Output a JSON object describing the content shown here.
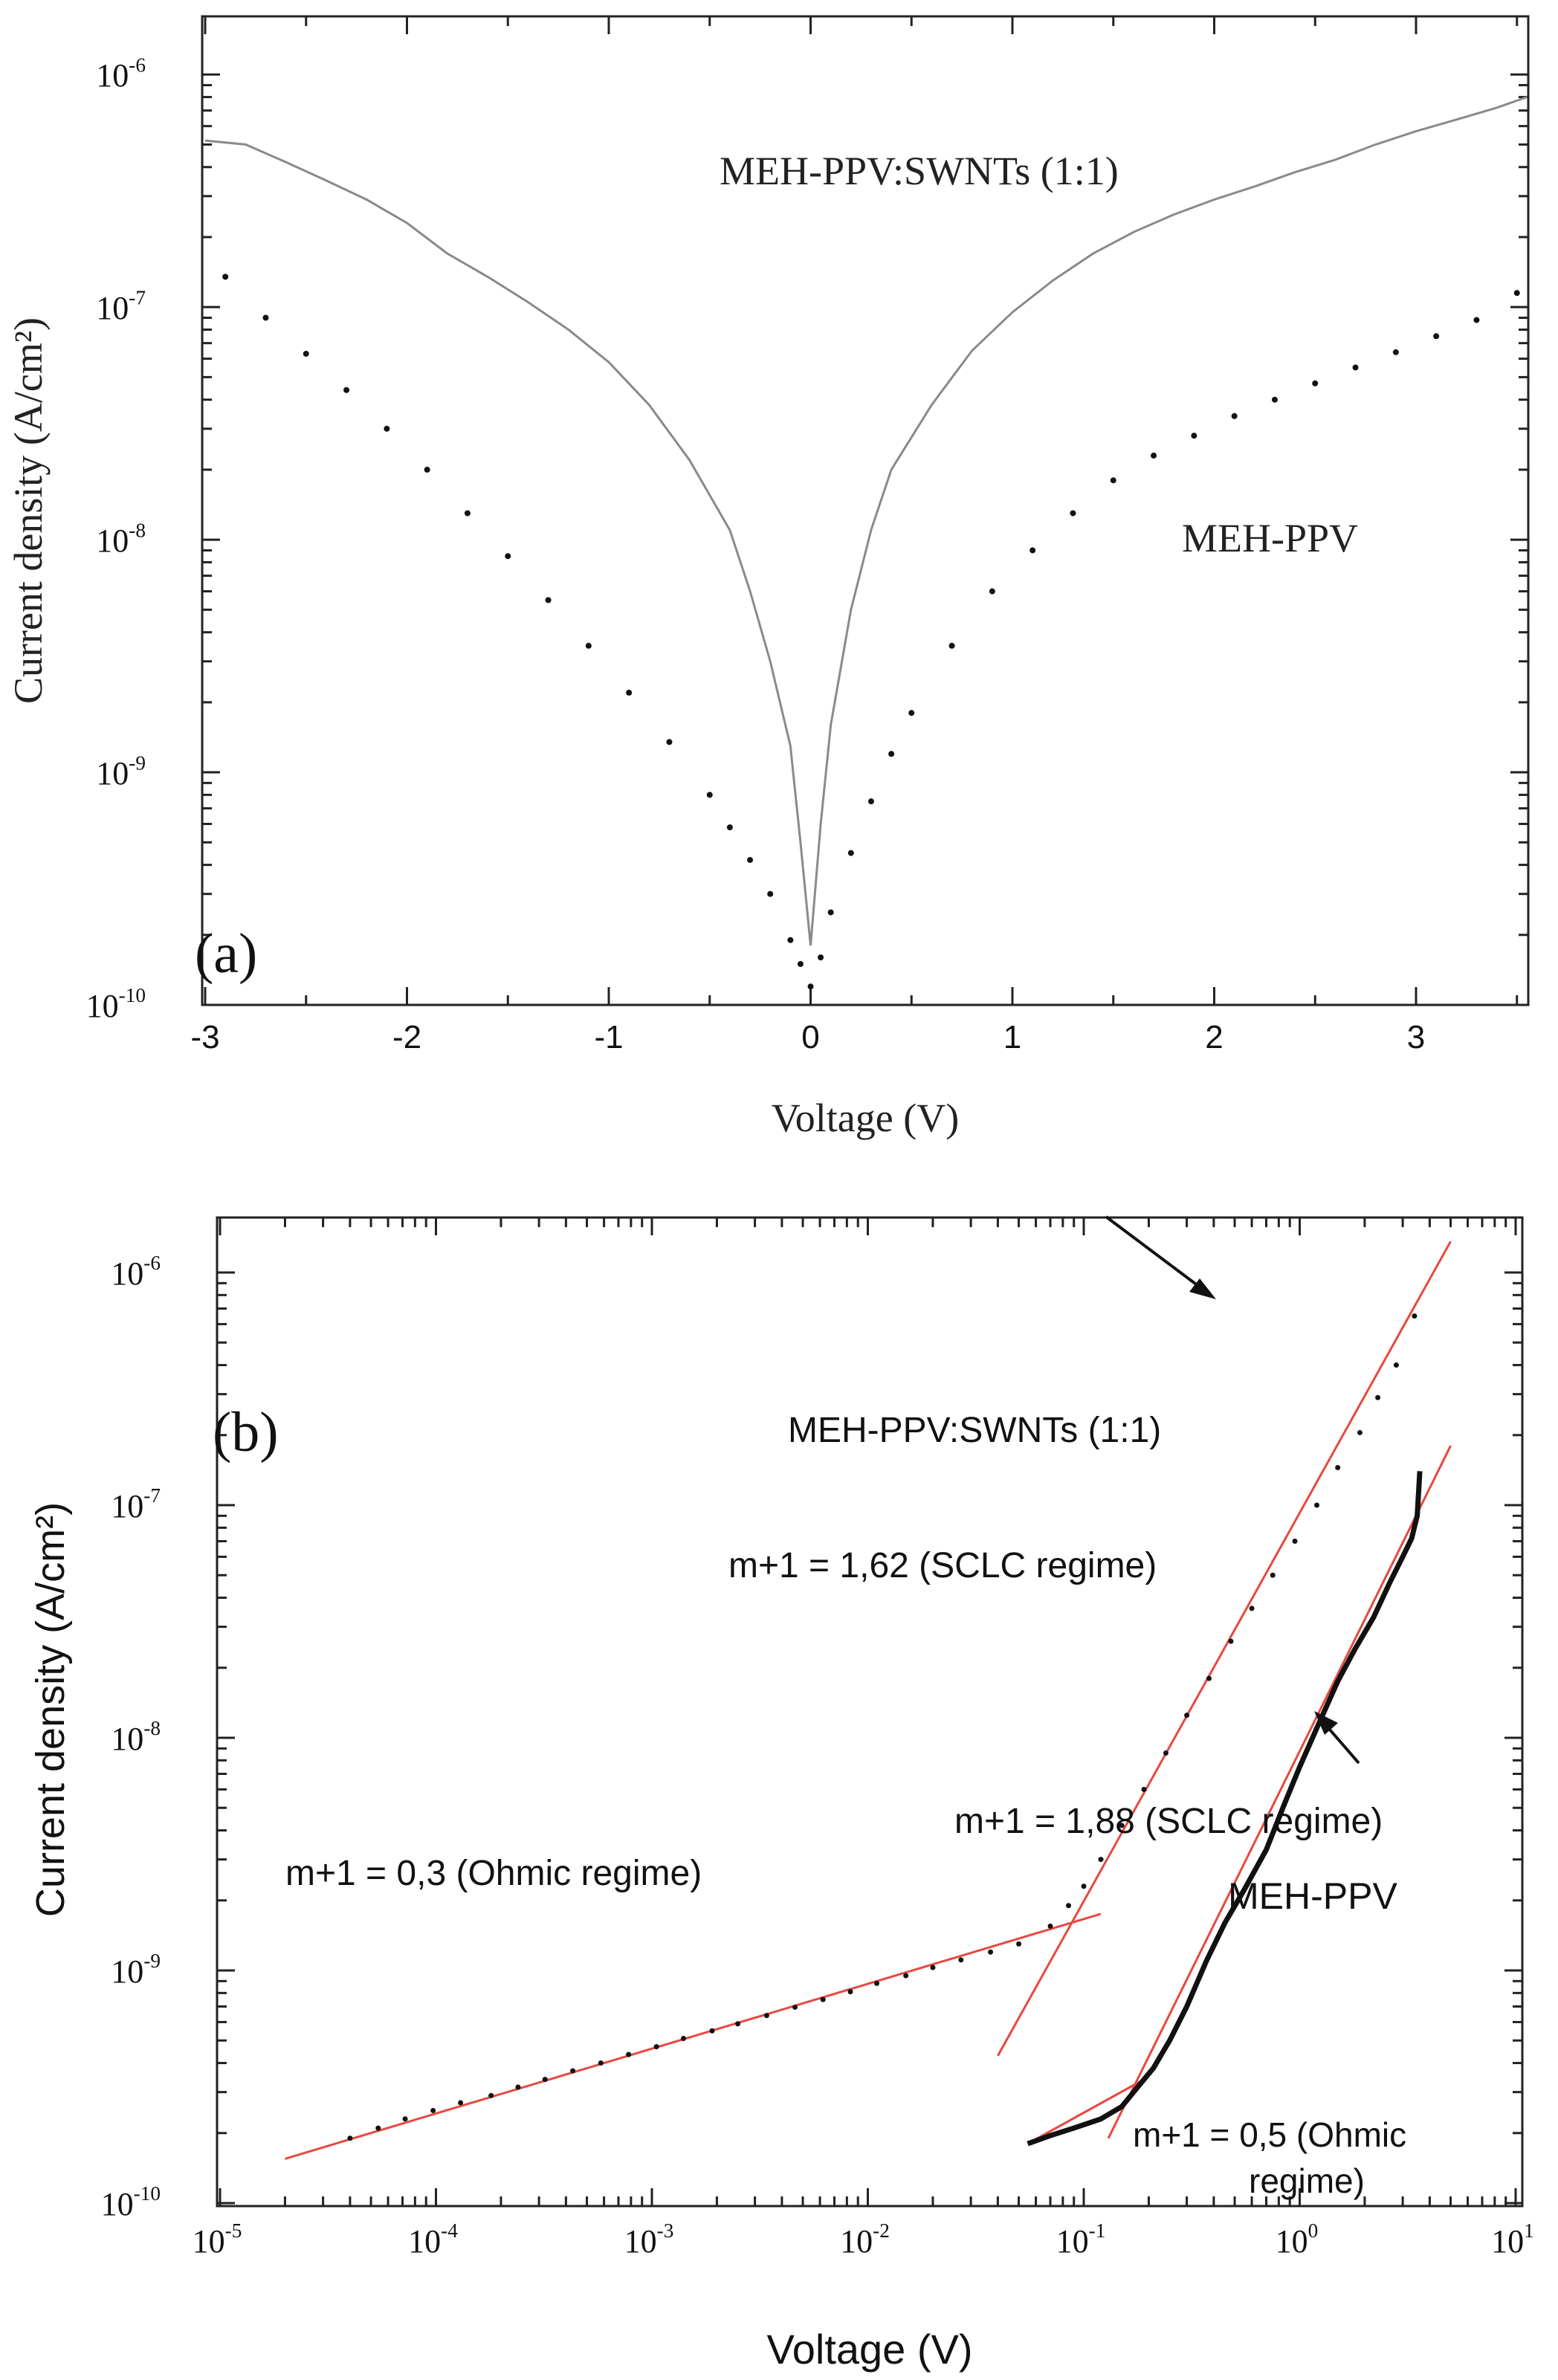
{
  "chart_data": [
    {
      "panel_label": "(a)",
      "type": "line",
      "title": "",
      "xlabel": "Voltage (V)",
      "ylabel": "Current density (A/cm²)",
      "xlim": [
        -3,
        3.55
      ],
      "ylim_log10": [
        -10,
        -5.75
      ],
      "xticks": [
        -3,
        -2,
        -1,
        0,
        1,
        2,
        3
      ],
      "xtick_labels": [
        "-3",
        "-2",
        "-1",
        "0",
        "1",
        "2",
        "3"
      ],
      "yticks_exp": [
        -10,
        -9,
        -8,
        -7,
        -6
      ],
      "ytick_labels": [
        {
          "base": "10",
          "exp": "-10"
        },
        {
          "base": "10",
          "exp": "-9"
        },
        {
          "base": "10",
          "exp": "-8"
        },
        {
          "base": "10",
          "exp": "-7"
        },
        {
          "base": "10",
          "exp": "-6"
        }
      ],
      "series": [
        {
          "name": "MEH-PPV:SWNTs (1:1)",
          "style": "line",
          "color": "#8a8a8a",
          "x": [
            -3.0,
            -2.8,
            -2.6,
            -2.4,
            -2.2,
            -2.0,
            -1.8,
            -1.6,
            -1.4,
            -1.2,
            -1.0,
            -0.8,
            -0.6,
            -0.4,
            -0.3,
            -0.2,
            -0.1,
            -0.05,
            0.0,
            0.05,
            0.1,
            0.2,
            0.3,
            0.4,
            0.6,
            0.8,
            1.0,
            1.2,
            1.4,
            1.6,
            1.8,
            2.0,
            2.2,
            2.4,
            2.6,
            2.8,
            3.0,
            3.2,
            3.4,
            3.55
          ],
          "y": [
            5.2e-07,
            5e-07,
            4.2e-07,
            3.5e-07,
            2.9e-07,
            2.3e-07,
            1.7e-07,
            1.35e-07,
            1.05e-07,
            8e-08,
            5.8e-08,
            3.8e-08,
            2.2e-08,
            1.1e-08,
            6e-09,
            3e-09,
            1.3e-09,
            5e-10,
            1.8e-10,
            6e-10,
            1.6e-09,
            5e-09,
            1.1e-08,
            2e-08,
            3.8e-08,
            6.5e-08,
            9.5e-08,
            1.3e-07,
            1.7e-07,
            2.1e-07,
            2.5e-07,
            2.9e-07,
            3.3e-07,
            3.8e-07,
            4.3e-07,
            5e-07,
            5.7e-07,
            6.4e-07,
            7.2e-07,
            8e-07
          ]
        },
        {
          "name": "MEH-PPV",
          "style": "dots",
          "color": "#111111",
          "x": [
            -2.9,
            -2.7,
            -2.5,
            -2.3,
            -2.1,
            -1.9,
            -1.7,
            -1.5,
            -1.3,
            -1.1,
            -0.9,
            -0.7,
            -0.5,
            -0.4,
            -0.3,
            -0.2,
            -0.1,
            -0.05,
            0.0,
            0.05,
            0.1,
            0.2,
            0.3,
            0.4,
            0.5,
            0.7,
            0.9,
            1.1,
            1.3,
            1.5,
            1.7,
            1.9,
            2.1,
            2.3,
            2.5,
            2.7,
            2.9,
            3.1,
            3.3,
            3.5
          ],
          "y": [
            1.35e-07,
            9e-08,
            6.3e-08,
            4.4e-08,
            3e-08,
            2e-08,
            1.3e-08,
            8.5e-09,
            5.5e-09,
            3.5e-09,
            2.2e-09,
            1.35e-09,
            8e-10,
            5.8e-10,
            4.2e-10,
            3e-10,
            1.9e-10,
            1.5e-10,
            1.2e-10,
            1.6e-10,
            2.5e-10,
            4.5e-10,
            7.5e-10,
            1.2e-09,
            1.8e-09,
            3.5e-09,
            6e-09,
            9e-09,
            1.3e-08,
            1.8e-08,
            2.3e-08,
            2.8e-08,
            3.4e-08,
            4e-08,
            4.7e-08,
            5.5e-08,
            6.4e-08,
            7.5e-08,
            8.8e-08,
            1.15e-07
          ]
        }
      ],
      "annotations": [
        {
          "text": "MEH-PPV:SWNTs (1:1)",
          "x": -0.5,
          "y": 4e-07
        },
        {
          "text": "MEH-PPV",
          "x": 1.85,
          "y": 1.05e-08
        }
      ]
    },
    {
      "panel_label": "(b)",
      "type": "line",
      "title": "",
      "xlabel": "Voltage (V)",
      "ylabel": "Current density (A/cm²)",
      "xscale": "log",
      "yscale": "log",
      "xlim_log10": [
        -5,
        1.22
      ],
      "ylim_log10": [
        -10,
        -5.8
      ],
      "xticks_exp": [
        -5,
        -4,
        -3,
        -2,
        -1,
        0,
        1
      ],
      "xtick_labels": [
        {
          "base": "10",
          "exp": "-5"
        },
        {
          "base": "10",
          "exp": "-4"
        },
        {
          "base": "10",
          "exp": "-3"
        },
        {
          "base": "10",
          "exp": "-2"
        },
        {
          "base": "10",
          "exp": "-1"
        },
        {
          "base": "10",
          "exp": "0"
        },
        {
          "base": "10",
          "exp": "1"
        }
      ],
      "yticks_exp": [
        -10,
        -9,
        -8,
        -7,
        -6
      ],
      "ytick_labels": [
        {
          "base": "10",
          "exp": "-10"
        },
        {
          "base": "10",
          "exp": "-9"
        },
        {
          "base": "10",
          "exp": "-8"
        },
        {
          "base": "10",
          "exp": "-7"
        },
        {
          "base": "10",
          "exp": "-6"
        }
      ],
      "series": [
        {
          "name": "MEH-PPV:SWNTs (1:1)",
          "style": "dots",
          "color": "#111111",
          "x": [
            4e-05,
            5.4e-05,
            7.2e-05,
            9.7e-05,
            0.00013,
            0.00018,
            0.00024,
            0.00032,
            0.00043,
            0.00058,
            0.00078,
            0.00105,
            0.0014,
            0.0019,
            0.0025,
            0.0034,
            0.0046,
            0.0062,
            0.0083,
            0.011,
            0.015,
            0.02,
            0.027,
            0.037,
            0.05,
            0.07,
            0.085,
            0.1,
            0.12,
            0.15,
            0.19,
            0.24,
            0.3,
            0.38,
            0.48,
            0.6,
            0.75,
            0.95,
            1.2,
            1.5,
            1.9,
            2.3,
            2.8,
            3.4
          ],
          "y": [
            1.9e-10,
            2.1e-10,
            2.3e-10,
            2.5e-10,
            2.7e-10,
            2.9e-10,
            3.15e-10,
            3.4e-10,
            3.7e-10,
            4e-10,
            4.35e-10,
            4.7e-10,
            5.1e-10,
            5.5e-10,
            5.9e-10,
            6.4e-10,
            6.95e-10,
            7.5e-10,
            8.1e-10,
            8.8e-10,
            9.5e-10,
            1.03e-09,
            1.11e-09,
            1.2e-09,
            1.3e-09,
            1.55e-09,
            1.9e-09,
            2.3e-09,
            3e-09,
            4.2e-09,
            6e-09,
            8.6e-09,
            1.25e-08,
            1.8e-08,
            2.6e-08,
            3.6e-08,
            5e-08,
            7e-08,
            1e-07,
            1.45e-07,
            2.05e-07,
            2.9e-07,
            4e-07,
            6.5e-07
          ]
        },
        {
          "name": "MEH-PPV",
          "style": "line",
          "color": "#111111",
          "x": [
            0.055,
            0.07,
            0.09,
            0.12,
            0.15,
            0.18,
            0.21,
            0.25,
            0.3,
            0.37,
            0.45,
            0.55,
            0.7,
            0.85,
            1.0,
            1.2,
            1.5,
            1.8,
            2.2,
            2.6,
            3.0,
            3.3,
            3.5,
            3.6
          ],
          "y": [
            1.8e-10,
            1.95e-10,
            2.1e-10,
            2.3e-10,
            2.6e-10,
            3.2e-10,
            3.8e-10,
            5e-10,
            7e-10,
            1.1e-09,
            1.6e-09,
            2.2e-09,
            3.3e-09,
            5.2e-09,
            7.5e-09,
            1.1e-08,
            1.75e-08,
            2.4e-08,
            3.3e-08,
            4.6e-08,
            6e-08,
            7.2e-08,
            9e-08,
            1.4e-07
          ]
        }
      ],
      "fits": [
        {
          "label": "m+1 = 0,3 (Ohmic regime)",
          "slope": 0.3,
          "x": [
            2e-05,
            0.12
          ],
          "y": [
            1.55e-10,
            1.75e-09
          ],
          "color": "#e8483f"
        },
        {
          "label": "m+1 = 1,62 (SCLC regime)",
          "slope": 1.62,
          "x": [
            0.04,
            5.0
          ],
          "y": [
            4.3e-10,
            1.36e-06
          ],
          "color": "#e8483f"
        },
        {
          "label": "m+1 = 0,5 (Ohmic regime)",
          "slope": 0.5,
          "x": [
            0.055,
            0.19
          ],
          "y": [
            1.8e-10,
            3.4e-10
          ],
          "color": "#e8483f"
        },
        {
          "label": "m+1 = 1,88 (SCLC regime)",
          "slope": 1.88,
          "x": [
            0.13,
            5.0
          ],
          "y": [
            1.9e-10,
            1.8e-07
          ],
          "color": "#e8483f"
        }
      ],
      "annotations": [
        {
          "text": "MEH-PPV:SWNTs (1:1)"
        },
        {
          "text": "m+1 = 1,62 (SCLC regime)"
        },
        {
          "text": "m+1 = 1,88 (SCLC regime)"
        },
        {
          "text": "m+1 = 0,3 (Ohmic regime)"
        },
        {
          "text": "MEH-PPV"
        },
        {
          "text": "m+1 = 0,5 (Ohmic",
          "text2": "regime)"
        }
      ]
    }
  ]
}
